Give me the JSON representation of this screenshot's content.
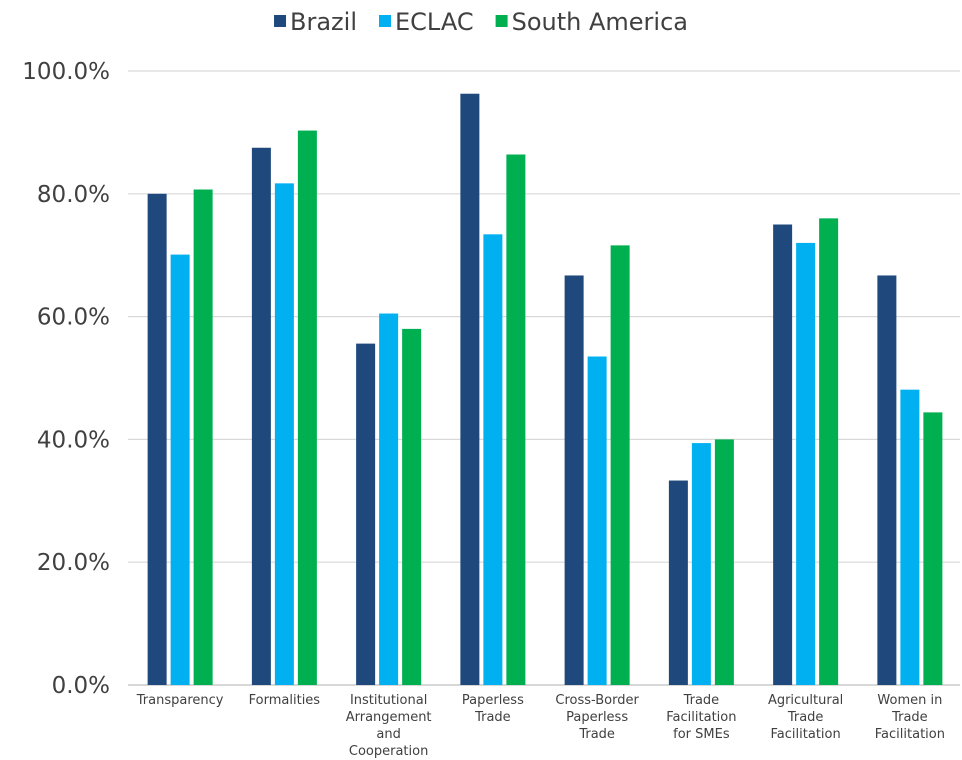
{
  "chart_data": {
    "type": "bar",
    "title": "",
    "xlabel": "",
    "ylabel": "",
    "ylim": [
      0,
      100
    ],
    "y_ticks": [
      "0.0%",
      "20.0%",
      "40.0%",
      "60.0%",
      "80.0%",
      "100.0%"
    ],
    "grid": true,
    "legend_position": "top",
    "categories": [
      "Transparency",
      "Formalities",
      "Institutional Arrangement and Cooperation",
      "Paperless Trade",
      "Cross-Border Paperless Trade",
      "Trade Facilitation for SMEs",
      "Agricultural Trade Facilitation",
      "Women in Trade Facilitation"
    ],
    "category_lines": [
      [
        "Transparency"
      ],
      [
        "Formalities"
      ],
      [
        "Institutional",
        "Arrangement",
        "and",
        "Cooperation"
      ],
      [
        "Paperless",
        "Trade"
      ],
      [
        "Cross-Border",
        "Paperless",
        "Trade"
      ],
      [
        "Trade",
        "Facilitation",
        "for SMEs"
      ],
      [
        "Agricultural",
        "Trade",
        "Facilitation"
      ],
      [
        "Women in",
        "Trade",
        "Facilitation"
      ]
    ],
    "series": [
      {
        "name": "Brazil",
        "color": "#1f497d",
        "values": [
          80.0,
          87.5,
          55.6,
          96.3,
          66.7,
          33.3,
          75.0,
          66.7
        ]
      },
      {
        "name": "ECLAC",
        "color": "#00b0f0",
        "values": [
          70.1,
          81.7,
          60.5,
          73.4,
          53.5,
          39.4,
          72.0,
          48.1
        ]
      },
      {
        "name": "South America",
        "color": "#00b050",
        "values": [
          80.7,
          90.3,
          58.0,
          86.4,
          71.6,
          40.0,
          76.0,
          44.4
        ]
      }
    ]
  }
}
